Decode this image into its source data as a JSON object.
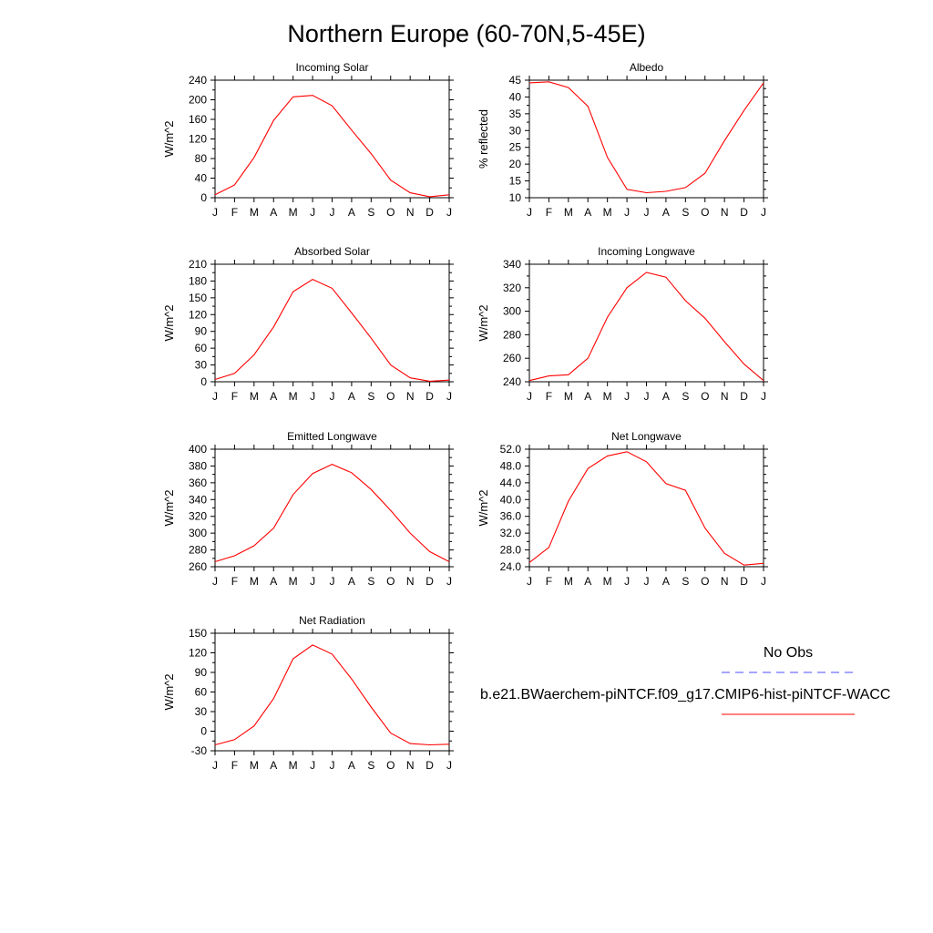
{
  "title": "Northern Europe (60-70N,5-45E)",
  "colors": {
    "model": "#ff0000",
    "obs": "#4d4dff"
  },
  "legend": {
    "obs_label": "No Obs",
    "model_label": "b.e21.BWaerchem-piNTCF.f09_g17.CMIP6-hist-piNTCF-WACC"
  },
  "chart_data": [
    {
      "type": "line",
      "title": "Incoming Solar",
      "ylabel": "W/m^2",
      "categories": [
        "J",
        "F",
        "M",
        "A",
        "M",
        "J",
        "J",
        "A",
        "S",
        "O",
        "N",
        "D",
        "J"
      ],
      "ylim": [
        0,
        240
      ],
      "yticks": [
        0,
        40,
        80,
        120,
        160,
        200,
        240
      ],
      "ytick_labels": [
        "0",
        "40",
        "80",
        "120",
        "160",
        "200",
        "240"
      ],
      "series": [
        {
          "values": [
            6,
            26,
            82,
            158,
            206,
            209,
            188,
            138,
            90,
            36,
            10,
            2,
            6
          ]
        }
      ]
    },
    {
      "type": "line",
      "title": "Albedo",
      "ylabel": "% reflected",
      "categories": [
        "J",
        "F",
        "M",
        "A",
        "M",
        "J",
        "J",
        "A",
        "S",
        "O",
        "N",
        "D",
        "J"
      ],
      "ylim": [
        10,
        45
      ],
      "yticks": [
        10,
        15,
        20,
        25,
        30,
        35,
        40,
        45
      ],
      "ytick_labels": [
        "10",
        "15",
        "20",
        "25",
        "30",
        "35",
        "40",
        "45"
      ],
      "series": [
        {
          "values": [
            44.2,
            44.5,
            42.8,
            37.2,
            22.0,
            12.5,
            11.5,
            11.9,
            13.0,
            17.3,
            27.0,
            36.0,
            44.2
          ]
        }
      ]
    },
    {
      "type": "line",
      "title": "Absorbed Solar",
      "ylabel": "W/m^2",
      "categories": [
        "J",
        "F",
        "M",
        "A",
        "M",
        "J",
        "J",
        "A",
        "S",
        "O",
        "N",
        "D",
        "J"
      ],
      "ylim": [
        0,
        210
      ],
      "yticks": [
        0,
        30,
        60,
        90,
        120,
        150,
        180,
        210
      ],
      "ytick_labels": [
        "0",
        "30",
        "60",
        "90",
        "120",
        "150",
        "180",
        "210"
      ],
      "series": [
        {
          "values": [
            4,
            15,
            48,
            98,
            161,
            183,
            167,
            123,
            78,
            30,
            7,
            1,
            3
          ]
        }
      ]
    },
    {
      "type": "line",
      "title": "Incoming Longwave",
      "ylabel": "W/m^2",
      "categories": [
        "J",
        "F",
        "M",
        "A",
        "M",
        "J",
        "J",
        "A",
        "S",
        "O",
        "N",
        "D",
        "J"
      ],
      "ylim": [
        240,
        340
      ],
      "yticks": [
        240,
        260,
        280,
        300,
        320,
        340
      ],
      "ytick_labels": [
        "240",
        "260",
        "280",
        "300",
        "320",
        "340"
      ],
      "series": [
        {
          "values": [
            241,
            245,
            246,
            260,
            295,
            320,
            333,
            329,
            309,
            294,
            274,
            255,
            241
          ]
        }
      ]
    },
    {
      "type": "line",
      "title": "Emitted Longwave",
      "ylabel": "W/m^2",
      "categories": [
        "J",
        "F",
        "M",
        "A",
        "M",
        "J",
        "J",
        "A",
        "S",
        "O",
        "N",
        "D",
        "J"
      ],
      "ylim": [
        260,
        400
      ],
      "yticks": [
        260,
        280,
        300,
        320,
        340,
        360,
        380,
        400
      ],
      "ytick_labels": [
        "260",
        "280",
        "300",
        "320",
        "340",
        "360",
        "380",
        "400"
      ],
      "series": [
        {
          "values": [
            266,
            273,
            285,
            306,
            346,
            371,
            382,
            372,
            352,
            327,
            300,
            278,
            266
          ]
        }
      ]
    },
    {
      "type": "line",
      "title": "Net Longwave",
      "ylabel": "W/m^2",
      "categories": [
        "J",
        "F",
        "M",
        "A",
        "M",
        "J",
        "J",
        "A",
        "S",
        "O",
        "N",
        "D",
        "J"
      ],
      "ylim": [
        24,
        52
      ],
      "yticks": [
        24,
        28,
        32,
        36,
        40,
        44,
        48,
        52
      ],
      "ytick_labels": [
        "24.0",
        "28.0",
        "32.0",
        "36.0",
        "40.0",
        "44.0",
        "48.0",
        "52.0"
      ],
      "series": [
        {
          "values": [
            25.0,
            28.6,
            39.6,
            47.4,
            50.4,
            51.4,
            49.0,
            43.8,
            42.2,
            33.2,
            27.2,
            24.4,
            24.8
          ]
        }
      ]
    },
    {
      "type": "line",
      "title": "Net Radiation",
      "ylabel": "W/m^2",
      "categories": [
        "J",
        "F",
        "M",
        "A",
        "M",
        "J",
        "J",
        "A",
        "S",
        "O",
        "N",
        "D",
        "J"
      ],
      "ylim": [
        -30,
        150
      ],
      "yticks": [
        -30,
        0,
        30,
        60,
        90,
        120,
        150
      ],
      "ytick_labels": [
        "-30",
        "0",
        "30",
        "60",
        "90",
        "120",
        "150"
      ],
      "series": [
        {
          "values": [
            -21,
            -13,
            8,
            50,
            111,
            132,
            118,
            80,
            37,
            -3,
            -19,
            -21,
            -20
          ]
        }
      ]
    }
  ]
}
